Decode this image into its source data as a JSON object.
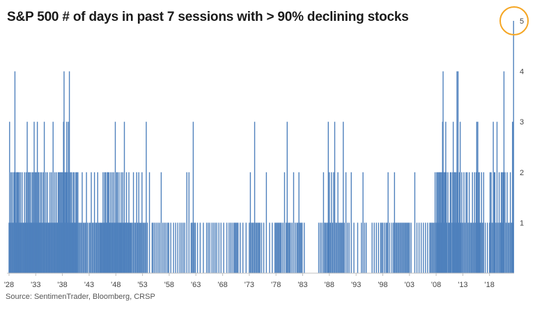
{
  "title": "S&P 500 # of days in past 7 sessions with > 90% declining stocks",
  "source": "Source: SentimenTrader, Bloomberg, CRSP",
  "colors": {
    "bar": "#4f81bd",
    "highlight_circle": "#f5a623",
    "axis": "#bfbfbf"
  },
  "chart_data": {
    "type": "bar",
    "title": "S&P 500 # of days in past 7 sessions with > 90% declining stocks",
    "xlabel": "",
    "ylabel": "",
    "x_range": [
      1928,
      2022.6
    ],
    "ylim": [
      0,
      5
    ],
    "y_ticks": [
      1,
      2,
      3,
      4,
      5
    ],
    "x_tick_labels": [
      "'28",
      "'33",
      "'38",
      "'43",
      "'48",
      "'53",
      "'58",
      "'63",
      "'68",
      "'73",
      "'78",
      "'83",
      "'88",
      "'93",
      "'98",
      "'03",
      "'08",
      "'13",
      "'18"
    ],
    "x_tick_years": [
      1928,
      1933,
      1938,
      1943,
      1948,
      1953,
      1958,
      1963,
      1968,
      1973,
      1978,
      1983,
      1988,
      1993,
      1998,
      2003,
      2008,
      2013,
      2018
    ],
    "grid": false,
    "legend": "none",
    "annotation": "circle highlighting latest value of 5",
    "baseline_year": 1928,
    "years": [
      1928.0,
      1928.1,
      1928.2,
      1928.35,
      1928.5,
      1928.6,
      1928.75,
      1928.9,
      1929.0,
      1929.1,
      1929.2,
      1929.3,
      1929.4,
      1929.5,
      1929.6,
      1929.7,
      1929.8,
      1929.9,
      1930.0,
      1930.15,
      1930.3,
      1930.45,
      1930.6,
      1930.75,
      1930.9,
      1931.0,
      1931.1,
      1931.2,
      1931.3,
      1931.4,
      1931.5,
      1931.6,
      1931.7,
      1931.8,
      1931.9,
      1932.0,
      1932.1,
      1932.2,
      1932.3,
      1932.4,
      1932.5,
      1932.6,
      1932.7,
      1932.8,
      1932.9,
      1933.0,
      1933.1,
      1933.2,
      1933.3,
      1933.4,
      1933.5,
      1933.6,
      1933.7,
      1933.8,
      1933.9,
      1934.0,
      1934.15,
      1934.3,
      1934.45,
      1934.6,
      1934.75,
      1934.9,
      1935.05,
      1935.2,
      1935.35,
      1935.5,
      1935.65,
      1935.8,
      1935.95,
      1936.1,
      1936.25,
      1936.4,
      1936.55,
      1936.7,
      1936.85,
      1937.0,
      1937.1,
      1937.2,
      1937.3,
      1937.4,
      1937.5,
      1937.6,
      1937.7,
      1937.8,
      1937.9,
      1938.0,
      1938.1,
      1938.2,
      1938.3,
      1938.4,
      1938.5,
      1938.6,
      1938.7,
      1938.8,
      1938.9,
      1939.0,
      1939.1,
      1939.2,
      1939.3,
      1939.4,
      1939.5,
      1939.6,
      1939.7,
      1939.8,
      1939.9,
      1940.0,
      1940.1,
      1940.2,
      1940.3,
      1940.4,
      1940.5,
      1940.6,
      1940.7,
      1940.8,
      1940.9,
      1941.1,
      1941.3,
      1941.5,
      1941.7,
      1941.9,
      1942.1,
      1942.3,
      1942.5,
      1942.7,
      1943.0,
      1943.2,
      1943.4,
      1943.6,
      1943.8,
      1944.0,
      1944.2,
      1944.4,
      1944.6,
      1944.8,
      1945.0,
      1945.15,
      1945.3,
      1945.45,
      1945.6,
      1945.75,
      1945.9,
      1946.0,
      1946.1,
      1946.2,
      1946.3,
      1946.4,
      1946.5,
      1946.6,
      1946.7,
      1946.8,
      1946.9,
      1947.0,
      1947.15,
      1947.3,
      1947.45,
      1947.6,
      1947.75,
      1947.9,
      1948.0,
      1948.15,
      1948.3,
      1948.45,
      1948.6,
      1948.75,
      1948.9,
      1949.0,
      1949.15,
      1949.3,
      1949.45,
      1949.6,
      1949.75,
      1949.9,
      1950.0,
      1950.15,
      1950.3,
      1950.45,
      1950.6,
      1950.75,
      1950.9,
      1951.1,
      1951.3,
      1951.5,
      1951.7,
      1951.9,
      1952.1,
      1952.3,
      1952.5,
      1952.7,
      1952.9,
      1953.1,
      1953.3,
      1953.5,
      1953.7,
      1953.9,
      1954.3,
      1954.8,
      1955.0,
      1955.3,
      1955.6,
      1955.9,
      1956.2,
      1956.5,
      1956.8,
      1957.1,
      1957.4,
      1957.7,
      1957.9,
      1958.3,
      1958.8,
      1959.2,
      1959.6,
      1960.0,
      1960.3,
      1960.6,
      1960.9,
      1961.3,
      1961.7,
      1962.1,
      1962.3,
      1962.5,
      1962.7,
      1962.9,
      1963.3,
      1963.8,
      1964.4,
      1965.0,
      1965.3,
      1965.6,
      1966.0,
      1966.3,
      1966.6,
      1966.9,
      1967.3,
      1967.7,
      1968.2,
      1968.8,
      1969.2,
      1969.5,
      1969.8,
      1970.1,
      1970.3,
      1970.5,
      1970.7,
      1970.9,
      1971.3,
      1971.8,
      1972.4,
      1973.0,
      1973.2,
      1973.4,
      1973.6,
      1973.8,
      1974.0,
      1974.2,
      1974.4,
      1974.6,
      1974.8,
      1975.0,
      1975.3,
      1975.7,
      1976.2,
      1976.8,
      1977.3,
      1977.8,
      1978.0,
      1978.2,
      1978.4,
      1978.6,
      1978.8,
      1979.0,
      1979.3,
      1979.6,
      1979.9,
      1980.1,
      1980.3,
      1980.5,
      1980.7,
      1981.0,
      1981.3,
      1981.6,
      1981.9,
      1982.1,
      1982.3,
      1982.5,
      1982.7,
      1982.9,
      1983.3,
      1986.0,
      1986.3,
      1986.6,
      1986.9,
      1987.1,
      1987.3,
      1987.5,
      1987.7,
      1987.8,
      1987.9,
      1988.0,
      1988.2,
      1988.4,
      1988.6,
      1988.8,
      1989.0,
      1989.2,
      1989.4,
      1989.6,
      1989.8,
      1990.0,
      1990.2,
      1990.4,
      1990.6,
      1990.8,
      1991.1,
      1991.4,
      1991.7,
      1992.1,
      1992.6,
      1993.3,
      1994.0,
      1994.3,
      1994.6,
      1994.9,
      1996.0,
      1996.4,
      1996.8,
      1997.2,
      1997.6,
      1997.8,
      1998.0,
      1998.3,
      1998.6,
      1998.8,
      1999.0,
      1999.3,
      1999.7,
      2000.0,
      2000.2,
      2000.4,
      2000.6,
      2000.8,
      2001.0,
      2001.2,
      2001.4,
      2001.6,
      2001.8,
      2002.0,
      2002.2,
      2002.4,
      2002.6,
      2002.8,
      2003.0,
      2003.3,
      2004.0,
      2004.4,
      2004.8,
      2005.2,
      2005.6,
      2006.0,
      2006.4,
      2006.8,
      2007.0,
      2007.2,
      2007.4,
      2007.6,
      2007.8,
      2008.0,
      2008.1,
      2008.2,
      2008.3,
      2008.4,
      2008.5,
      2008.6,
      2008.7,
      2008.8,
      2008.9,
      2009.0,
      2009.1,
      2009.2,
      2009.3,
      2009.4,
      2009.5,
      2009.6,
      2009.7,
      2009.8,
      2009.9,
      2010.0,
      2010.2,
      2010.35,
      2010.5,
      2010.65,
      2010.8,
      2011.0,
      2011.1,
      2011.2,
      2011.3,
      2011.4,
      2011.5,
      2011.6,
      2011.7,
      2011.8,
      2011.9,
      2012.0,
      2012.1,
      2012.2,
      2012.35,
      2012.5,
      2012.65,
      2012.8,
      2013.0,
      2013.2,
      2013.4,
      2013.6,
      2013.8,
      2014.0,
      2014.2,
      2014.4,
      2014.6,
      2014.8,
      2015.0,
      2015.2,
      2015.4,
      2015.5,
      2015.6,
      2015.7,
      2015.8,
      2015.9,
      2016.0,
      2016.1,
      2016.2,
      2016.3,
      2016.5,
      2016.7,
      2016.9,
      2017.2,
      2017.6,
      2018.0,
      2018.1,
      2018.2,
      2018.3,
      2018.5,
      2018.7,
      2018.8,
      2018.9,
      2019.0,
      2019.2,
      2019.4,
      2019.6,
      2019.8,
      2020.0,
      2020.1,
      2020.2,
      2020.3,
      2020.4,
      2020.5,
      2020.6,
      2020.7,
      2020.9,
      2021.1,
      2021.3,
      2021.5,
      2021.7,
      2021.9,
      2022.1,
      2022.2,
      2022.3,
      2022.4,
      2022.5
    ],
    "values": [
      1,
      3,
      1,
      2,
      1,
      2,
      1,
      2,
      2,
      4,
      1,
      2,
      1,
      2,
      2,
      2,
      1,
      2,
      1,
      2,
      1,
      2,
      1,
      1,
      2,
      1,
      1,
      2,
      1,
      3,
      1,
      2,
      1,
      2,
      1,
      2,
      1,
      1,
      2,
      1,
      2,
      1,
      3,
      2,
      1,
      2,
      1,
      2,
      3,
      1,
      2,
      2,
      1,
      1,
      2,
      1,
      2,
      1,
      2,
      3,
      1,
      2,
      1,
      2,
      1,
      1,
      2,
      1,
      2,
      1,
      3,
      1,
      2,
      1,
      2,
      1,
      1,
      2,
      2,
      1,
      2,
      2,
      1,
      2,
      2,
      1,
      2,
      3,
      4,
      2,
      1,
      2,
      2,
      3,
      2,
      1,
      3,
      2,
      4,
      1,
      2,
      1,
      2,
      1,
      1,
      2,
      1,
      2,
      1,
      1,
      2,
      1,
      2,
      1,
      2,
      1,
      1,
      1,
      2,
      1,
      1,
      1,
      2,
      1,
      1,
      1,
      2,
      1,
      1,
      2,
      1,
      1,
      2,
      1,
      1,
      1,
      1,
      1,
      2,
      1,
      2,
      1,
      2,
      1,
      1,
      2,
      2,
      1,
      2,
      1,
      1,
      2,
      1,
      2,
      1,
      2,
      1,
      3,
      1,
      2,
      2,
      1,
      2,
      1,
      1,
      2,
      1,
      2,
      1,
      3,
      1,
      1,
      2,
      1,
      1,
      2,
      1,
      1,
      1,
      1,
      2,
      1,
      1,
      2,
      1,
      2,
      1,
      1,
      2,
      1,
      1,
      1,
      3,
      1,
      2,
      1,
      1,
      1,
      1,
      1,
      1,
      2,
      1,
      1,
      1,
      1,
      1,
      1,
      1,
      1,
      1,
      1,
      1,
      1,
      1,
      2,
      2,
      1,
      1,
      3,
      1,
      1,
      1,
      1,
      1,
      1,
      1,
      1,
      1,
      1,
      1,
      1,
      1,
      1,
      1,
      1,
      1,
      1,
      1,
      1,
      1,
      1,
      1,
      1,
      1,
      1,
      1,
      1,
      2,
      1,
      1,
      1,
      3,
      1,
      1,
      1,
      1,
      1,
      1,
      1,
      2,
      1,
      1,
      1,
      1,
      1,
      1,
      1,
      1,
      1,
      1,
      2,
      1,
      3,
      1,
      1,
      1,
      1,
      2,
      1,
      1,
      1,
      2,
      1,
      1,
      1,
      1,
      1,
      1,
      1,
      2,
      1,
      1,
      1,
      1,
      3,
      1,
      2,
      1,
      2,
      1,
      2,
      3,
      1,
      1,
      2,
      1,
      1,
      1,
      1,
      3,
      1,
      2,
      1,
      1,
      2,
      1,
      1,
      1,
      2,
      1,
      1,
      1,
      1,
      1,
      1,
      1,
      1,
      1,
      1,
      1,
      1,
      2,
      1,
      1,
      1,
      2,
      1,
      1,
      1,
      1,
      1,
      1,
      1,
      1,
      1,
      1,
      1,
      1,
      1,
      1,
      1,
      2,
      1,
      1,
      1,
      1,
      1,
      1,
      1,
      1,
      1,
      1,
      1,
      2,
      1,
      2,
      1,
      2,
      1,
      2,
      2,
      1,
      2,
      2,
      1,
      2,
      3,
      4,
      2,
      1,
      2,
      2,
      3,
      2,
      1,
      2,
      1,
      1,
      2,
      2,
      1,
      2,
      3,
      1,
      2,
      2,
      1,
      2,
      1,
      4,
      2,
      4,
      1,
      2,
      3,
      1,
      2,
      1,
      2,
      1,
      2,
      2,
      1,
      2,
      1,
      1,
      2,
      1,
      2,
      1,
      2,
      3,
      1,
      3,
      2,
      1,
      2,
      1,
      1,
      2,
      1,
      2,
      1,
      1,
      1,
      2,
      1,
      2,
      1,
      3,
      1,
      2,
      2,
      1,
      3,
      1,
      2,
      1,
      1,
      2,
      1,
      2,
      1,
      2,
      4,
      2,
      1,
      2,
      1,
      1,
      2,
      1,
      1,
      3,
      1,
      5
    ]
  }
}
